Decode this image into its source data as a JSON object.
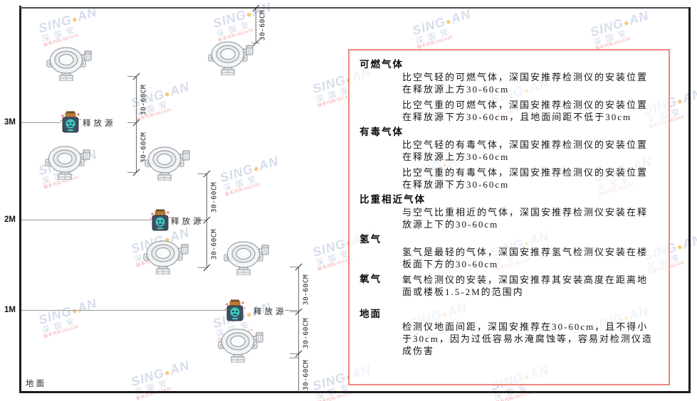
{
  "diagram": {
    "heights": [
      "3M",
      "2M",
      "1M"
    ],
    "ground_label": "地面",
    "source_label": "释放源",
    "dim_label": "30-60CM"
  },
  "panel": {
    "border_color": "#f0867c",
    "sections": [
      {
        "heading": "可燃气体",
        "paras": [
          "比空气轻的可燃气体，深国安推荐检测仪的安装位置在释放源上方30-60cm",
          "比空气重的可燃气体，深国安推荐检测仪的安装位置在释放源下方30-60cm，且地面间距不低于30cm"
        ]
      },
      {
        "heading": "有毒气体",
        "paras": [
          "比空气轻的有毒气体，深国安推荐检测仪的安装位置在释放源上方30-60cm",
          "比空气重的有毒气体，深国安推荐检测仪的安装位置在释放源下方30-60cm"
        ]
      },
      {
        "heading": "比重相近气体",
        "paras": [
          "与空气比重相近的气体，深国安推荐检测仪安装在释放源上下的30-60cm"
        ]
      },
      {
        "heading": "氢气",
        "paras": [
          "氢气是最轻的气体，深国安推荐氢气检测仪安装在楼板面下方的30-60cm"
        ]
      },
      {
        "heading": "氧气",
        "paras": [
          "氧气检测仪的安装，深国安推荐其安装高度在距离地面或楼板1.5-2M的范围内"
        ]
      },
      {
        "heading": "地面",
        "paras": [
          "检测仪地面间距，深国安推荐在30-60cm，且不得小于30cm，因为过低容易水淹腐蚀等，容易对检测仪造成伤害"
        ]
      }
    ]
  },
  "watermark": {
    "brand_left": "SING",
    "brand_right": "AN",
    "dot": "●",
    "cn": "深国安",
    "code": "联系代码:661434"
  }
}
